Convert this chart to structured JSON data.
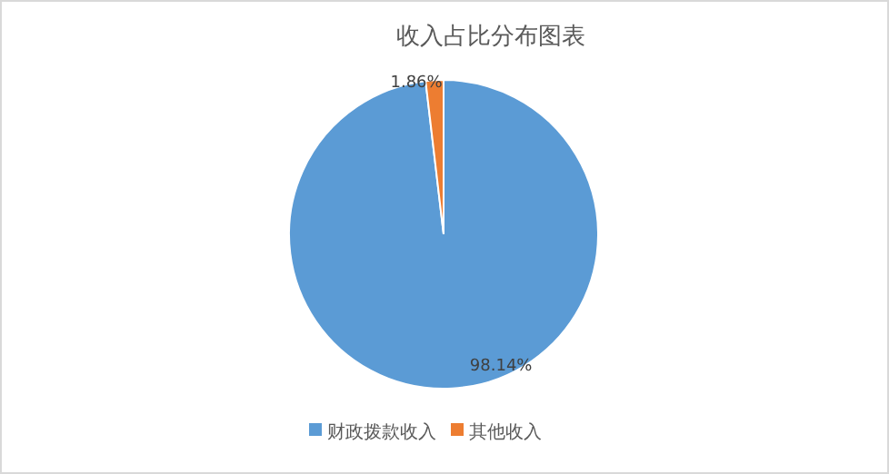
{
  "chart_data": {
    "type": "pie",
    "title": "收入占比分布图表",
    "categories": [
      "财政拨款收入",
      "其他收入"
    ],
    "values": [
      98.14,
      1.86
    ],
    "value_labels": [
      "98.14%",
      "1.86%"
    ],
    "colors": [
      "#5b9bd5",
      "#ed7d31"
    ],
    "legend": "bottom"
  }
}
